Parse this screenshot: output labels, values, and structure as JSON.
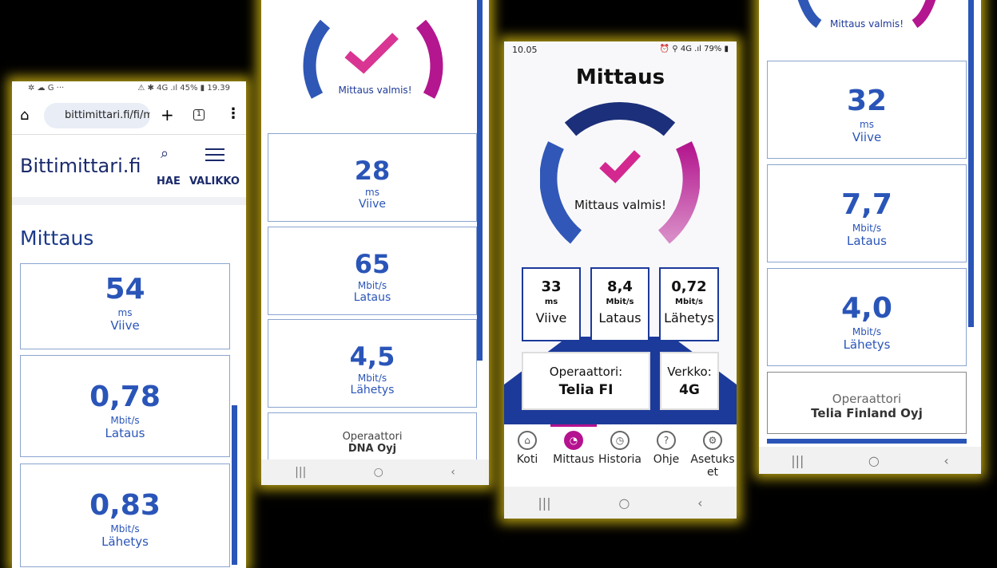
{
  "phone1": {
    "status_left": "✲ ☁ G ···",
    "status_right": "⚠ ✱ 4G .ıl 45% ▮ 19.39",
    "url": "bittimittari.fi/fi/m",
    "tabs_count": "1",
    "logo": "Bittimittari.fi",
    "search_label": "HAE",
    "menu_label": "VALIKKO",
    "page_title": "Mittaus",
    "cards": [
      {
        "value": "54",
        "unit": "ms",
        "label": "Viive"
      },
      {
        "value": "0,78",
        "unit": "Mbit/s",
        "label": "Lataus"
      },
      {
        "value": "0,83",
        "unit": "Mbit/s",
        "label": "Lähetys"
      }
    ]
  },
  "phone2": {
    "gauge_text": "Mittaus valmis!",
    "cards": [
      {
        "value": "28",
        "unit": "ms",
        "label": "Viive"
      },
      {
        "value": "65",
        "unit": "Mbit/s",
        "label": "Lataus"
      },
      {
        "value": "4,5",
        "unit": "Mbit/s",
        "label": "Lähetys"
      }
    ],
    "operator_label": "Operaattori",
    "operator": "DNA Oyj"
  },
  "phone3": {
    "status_time": "10.05",
    "status_right": "⏰ ⚲ 4G .ıl 79% ▮",
    "title": "Mittaus",
    "gauge_text": "Mittaus valmis!",
    "stats": [
      {
        "value": "33",
        "unit": "ms",
        "label": "Viive"
      },
      {
        "value": "8,4",
        "unit": "Mbit/s",
        "label": "Lataus"
      },
      {
        "value": "0,72",
        "unit": "Mbit/s",
        "label": "Lähetys"
      }
    ],
    "operator_label": "Operaattori:",
    "operator": "Telia FI",
    "network_label": "Verkko:",
    "network": "4G",
    "tabs": [
      {
        "label": "Koti",
        "icon": "⌂"
      },
      {
        "label": "Mittaus",
        "icon": "◔"
      },
      {
        "label": "Historia",
        "icon": "◷"
      },
      {
        "label": "Ohje",
        "icon": "?"
      },
      {
        "label": "Asetukset",
        "icon": "⚙"
      }
    ],
    "active_color": "#b5128f"
  },
  "phone4": {
    "gauge_text": "Mittaus valmis!",
    "cards": [
      {
        "value": "32",
        "unit": "ms",
        "label": "Viive"
      },
      {
        "value": "7,7",
        "unit": "Mbit/s",
        "label": "Lataus"
      },
      {
        "value": "4,0",
        "unit": "Mbit/s",
        "label": "Lähetys"
      }
    ],
    "operator_label": "Operaattori",
    "operator": "Telia Finland Oyj"
  },
  "nav": {
    "recents": "|||",
    "home": "○",
    "back": "‹"
  }
}
